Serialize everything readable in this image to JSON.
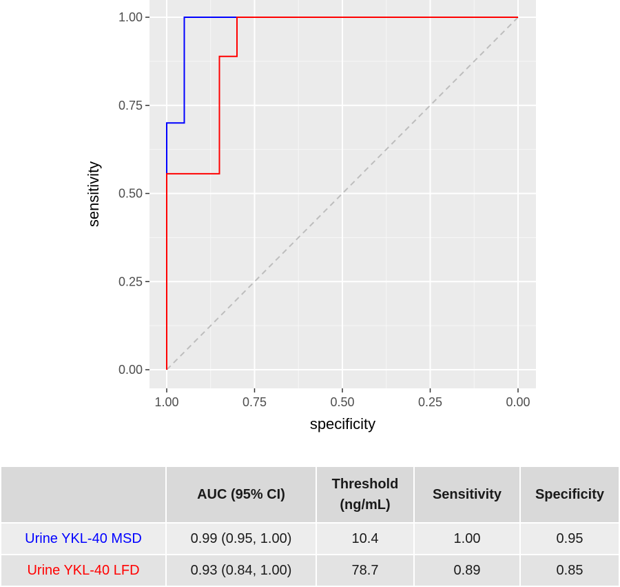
{
  "chart_data": {
    "type": "line",
    "xlabel": "specificity",
    "ylabel": "sensitivity",
    "x_reversed": true,
    "xlim": [
      1.0,
      0.0
    ],
    "ylim": [
      0.0,
      1.0
    ],
    "x_ticks": [
      "1.00",
      "0.75",
      "0.50",
      "0.25",
      "0.00"
    ],
    "y_ticks": [
      "0.00",
      "0.25",
      "0.50",
      "0.75",
      "1.00"
    ],
    "grid": true,
    "background": "#ebebeb",
    "series": [
      {
        "name": "Urine YKL-40 MSD",
        "color": "#0000ff",
        "points": [
          [
            1.0,
            0.0
          ],
          [
            1.0,
            0.7
          ],
          [
            0.95,
            0.7
          ],
          [
            0.95,
            1.0
          ],
          [
            0.0,
            1.0
          ]
        ]
      },
      {
        "name": "Urine YKL-40 LFD",
        "color": "#ff0000",
        "points": [
          [
            1.0,
            0.0
          ],
          [
            1.0,
            0.556
          ],
          [
            0.85,
            0.556
          ],
          [
            0.85,
            0.889
          ],
          [
            0.8,
            0.889
          ],
          [
            0.8,
            1.0
          ],
          [
            0.0,
            1.0
          ]
        ]
      }
    ],
    "reference_line": {
      "points": [
        [
          1.0,
          0.0
        ],
        [
          0.0,
          1.0
        ]
      ],
      "style": "dashed",
      "color": "#bdbdbd"
    }
  },
  "table": {
    "headers": [
      "",
      "AUC (95% CI)",
      "Threshold (ng/mL)",
      "Sensitivity",
      "Specificity"
    ],
    "rows": [
      {
        "label": "Urine YKL-40 MSD",
        "color": "#0000ff",
        "auc": "0.99 (0.95, 1.00)",
        "threshold": "10.4",
        "sensitivity": "1.00",
        "specificity": "0.95"
      },
      {
        "label": "Urine YKL-40 LFD",
        "color": "#ff0000",
        "auc": "0.93 (0.84, 1.00)",
        "threshold": "78.7",
        "sensitivity": "0.89",
        "specificity": "0.85"
      }
    ]
  }
}
